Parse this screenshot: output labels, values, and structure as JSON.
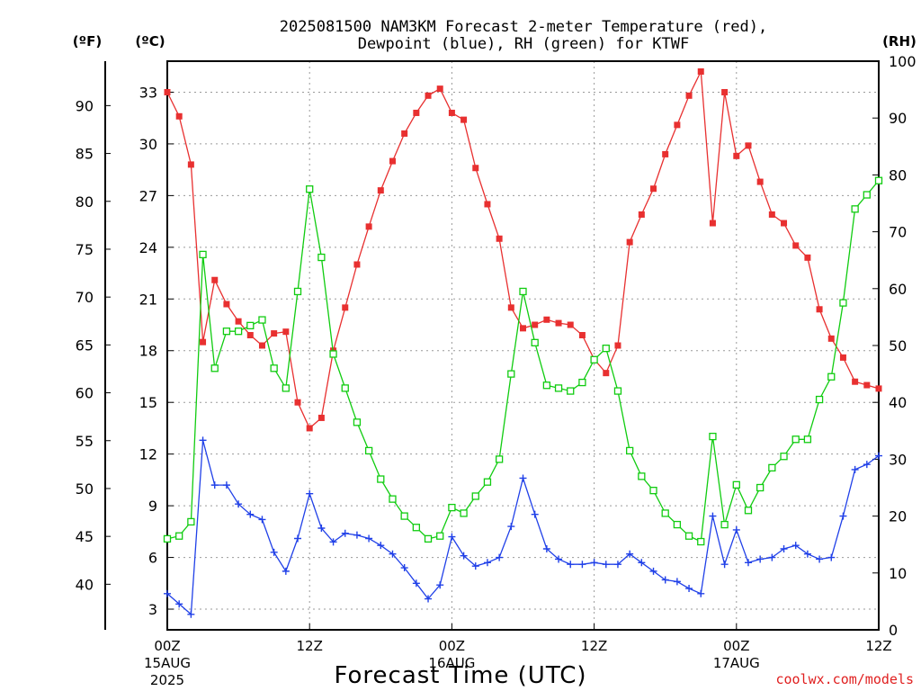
{
  "chart_data": {
    "type": "line",
    "title_line1": "2025081500 NAM3KM Forecast 2-meter Temperature (red),",
    "title_line2": "Dewpoint (blue), RH (green) for KTWF",
    "xlabel": "Forecast Time (UTC)",
    "credit": "coolwx.com/models",
    "left_unit_f": "(ºF)",
    "left_unit_c": "(ºC)",
    "right_unit": "(RH)",
    "x_range_hours": [
      0,
      60
    ],
    "y_celsius_range": [
      1.8,
      34.8
    ],
    "y_rh_range": [
      0,
      100
    ],
    "grid": true,
    "fahrenheit_ticks": [
      40,
      45,
      50,
      55,
      60,
      65,
      70,
      75,
      80,
      85,
      90
    ],
    "celsius_ticks": [
      3,
      6,
      9,
      12,
      15,
      18,
      21,
      24,
      27,
      30,
      33
    ],
    "rh_ticks": [
      0,
      10,
      20,
      30,
      40,
      50,
      60,
      70,
      80,
      90,
      100
    ],
    "x_ticks": [
      {
        "hour": 0,
        "label": "00Z",
        "sub1": "15AUG",
        "sub2": "2025"
      },
      {
        "hour": 12,
        "label": "12Z",
        "sub1": "",
        "sub2": ""
      },
      {
        "hour": 24,
        "label": "00Z",
        "sub1": "16AUG",
        "sub2": ""
      },
      {
        "hour": 36,
        "label": "12Z",
        "sub1": "",
        "sub2": ""
      },
      {
        "hour": 48,
        "label": "00Z",
        "sub1": "17AUG",
        "sub2": ""
      },
      {
        "hour": 60,
        "label": "12Z",
        "sub1": "",
        "sub2": ""
      }
    ],
    "colors": {
      "temperature": "#e83030",
      "dewpoint": "#2040e8",
      "rh": "#10cc10"
    },
    "hours": [
      0,
      1,
      2,
      3,
      4,
      5,
      6,
      7,
      8,
      9,
      10,
      11,
      12,
      13,
      14,
      15,
      16,
      17,
      18,
      19,
      20,
      21,
      22,
      23,
      24,
      25,
      26,
      27,
      28,
      29,
      30,
      31,
      32,
      33,
      34,
      35,
      36,
      37,
      38,
      39,
      40,
      41,
      42,
      43,
      44,
      45,
      46,
      47,
      48,
      49,
      50,
      51,
      52,
      53,
      54,
      55,
      56,
      57,
      58,
      59,
      60
    ],
    "series": [
      {
        "key": "temperature",
        "unit": "C",
        "values": [
          33.0,
          31.6,
          28.8,
          18.5,
          22.1,
          20.7,
          19.7,
          18.9,
          18.3,
          19.0,
          19.1,
          15.0,
          13.5,
          14.1,
          18.0,
          20.5,
          23.0,
          25.2,
          27.3,
          29.0,
          30.6,
          31.8,
          32.8,
          33.2,
          31.8,
          31.4,
          28.6,
          26.5,
          24.5,
          20.5,
          19.3,
          19.5,
          19.8,
          19.6,
          19.5,
          18.9,
          17.5,
          16.7,
          18.3,
          24.3,
          25.9,
          27.4,
          29.4,
          31.1,
          32.8,
          34.2,
          25.4,
          33.0,
          29.3,
          29.9,
          27.8,
          25.9,
          25.4,
          24.1,
          23.4,
          20.4,
          18.7,
          17.6,
          16.2,
          16.0,
          15.8
        ]
      },
      {
        "key": "dewpoint",
        "unit": "C",
        "values": [
          3.9,
          3.3,
          2.7,
          12.8,
          10.2,
          10.2,
          9.1,
          8.5,
          8.2,
          6.3,
          5.2,
          7.1,
          9.7,
          7.7,
          6.9,
          7.4,
          7.3,
          7.1,
          6.7,
          6.2,
          5.4,
          4.5,
          3.6,
          4.4,
          7.2,
          6.1,
          5.5,
          5.7,
          6.0,
          7.8,
          10.6,
          8.5,
          6.5,
          5.9,
          5.6,
          5.6,
          5.7,
          5.6,
          5.6,
          6.2,
          5.7,
          5.2,
          4.7,
          4.6,
          4.2,
          3.9,
          8.4,
          5.6,
          7.6,
          5.7,
          5.9,
          6.0,
          6.5,
          6.7,
          6.2,
          5.9,
          6.0,
          8.4,
          11.1,
          11.4,
          11.9
        ]
      },
      {
        "key": "rh",
        "unit": "%",
        "values": [
          16,
          16.5,
          19,
          66,
          46,
          52.5,
          52.5,
          53.5,
          54.5,
          46,
          42.5,
          59.5,
          77.5,
          65.5,
          48.5,
          42.5,
          36.5,
          31.5,
          26.5,
          23,
          20,
          18,
          16,
          16.5,
          21.5,
          20.5,
          23.5,
          26,
          30,
          45,
          59.5,
          50.5,
          43,
          42.5,
          42,
          43.5,
          47.5,
          49.5,
          42,
          31.5,
          27,
          24.5,
          20.5,
          18.5,
          16.5,
          15.5,
          34,
          18.5,
          25.5,
          21,
          25,
          28.5,
          30.5,
          33.5,
          33.5,
          40.5,
          44.5,
          57.5,
          74,
          76.5,
          79
        ]
      }
    ]
  }
}
